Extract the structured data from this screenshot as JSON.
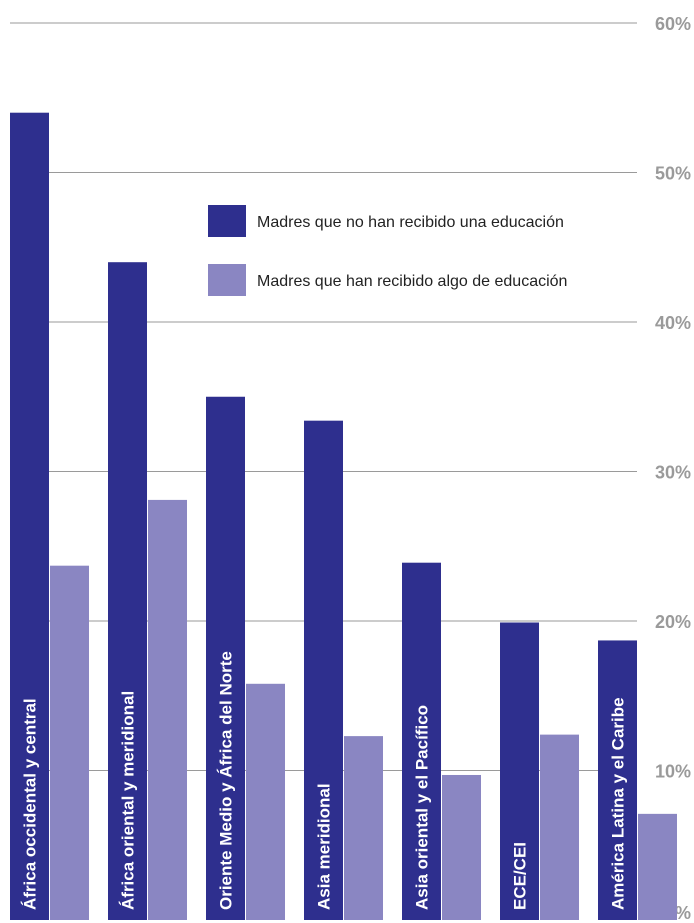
{
  "chart_data": {
    "type": "bar",
    "categories": [
      "África occidental y central",
      "África oriental y meridional",
      "Oriente Medio y África del Norte",
      "Asia meridional",
      "Asia oriental y el Pacífico",
      "ECE/CEI",
      "América Latina y el Caribe"
    ],
    "series": [
      {
        "name": "Madres que no han recibido una educación",
        "values": [
          54,
          44,
          35,
          33.4,
          23.9,
          19.9,
          18.7
        ]
      },
      {
        "name": "Madres que han recibido algo de educación",
        "values": [
          23.7,
          28.1,
          15.8,
          12.3,
          9.7,
          12.4,
          7.1
        ]
      }
    ],
    "ylim": [
      0,
      60
    ],
    "yticks": [
      "0%",
      "10%",
      "20%",
      "30%",
      "40%",
      "50%",
      "60%"
    ],
    "grid": true,
    "legend_position": "top-right"
  },
  "colors": {
    "series_1": "#2e2f8e",
    "series_2": "#8a86c2",
    "grid": "#9a9a9a",
    "tick_label": "#9a9a9a",
    "category_label": "#ffffff"
  }
}
